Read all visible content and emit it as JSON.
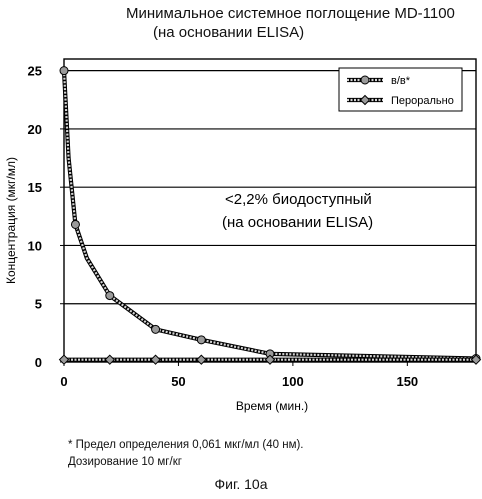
{
  "chart_data": {
    "type": "line",
    "title_line1": "Минимальное системное поглощение MD-1100",
    "title_line2": "(на основании ELISA)",
    "xlabel": "Время (мин.)",
    "ylabel": "Концентрация (мкг/мл)",
    "xlim": [
      0,
      180
    ],
    "ylim": [
      0,
      26
    ],
    "xticks": [
      0,
      50,
      100,
      150
    ],
    "yticks": [
      0,
      5,
      10,
      15,
      20,
      25
    ],
    "grid": "horizontal",
    "legend_position": "top-right",
    "annotation_line1": "<2,2% биодоступный",
    "annotation_line2": "(на основании ELISA)",
    "series": [
      {
        "name": "в/в*",
        "marker": "circle",
        "x": [
          0,
          2,
          5,
          10,
          20,
          40,
          60,
          90,
          180
        ],
        "y": [
          25,
          17.5,
          11.8,
          8.9,
          5.7,
          2.8,
          1.9,
          0.7,
          0.3
        ],
        "marker_x": [
          0,
          5,
          20,
          40,
          60,
          90,
          180
        ]
      },
      {
        "name": "Перорально",
        "marker": "diamond",
        "x": [
          0,
          5,
          20,
          40,
          60,
          90,
          180
        ],
        "y": [
          0.2,
          0.2,
          0.2,
          0.2,
          0.2,
          0.2,
          0.2
        ],
        "marker_x": [
          0,
          20,
          40,
          60,
          90,
          180
        ]
      }
    ]
  },
  "footnote_line1": "* Предел определения 0,061 мкг/мл (40 нм).",
  "footnote_line2": "Дозирование 10 мг/кг",
  "figure_label": "Фиг. 10а"
}
